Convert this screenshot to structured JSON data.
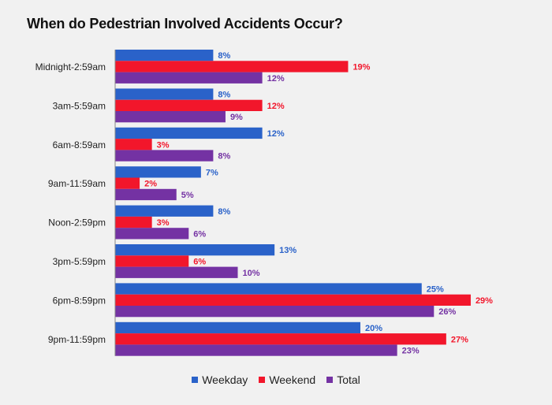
{
  "chart_data": {
    "type": "bar",
    "orientation": "horizontal",
    "title": "When do Pedestrian Involved Accidents Occur?",
    "categories": [
      "Midnight-2:59am",
      "3am-5:59am",
      "6am-8:59am",
      "9am-11:59am",
      "Noon-2:59pm",
      "3pm-5:59pm",
      "6pm-8:59pm",
      "9pm-11:59pm"
    ],
    "series": [
      {
        "name": "Weekday",
        "color": "#2a62c9",
        "values": [
          8,
          8,
          12,
          7,
          8,
          13,
          25,
          20
        ]
      },
      {
        "name": "Weekend",
        "color": "#f2162b",
        "values": [
          19,
          12,
          3,
          2,
          3,
          6,
          29,
          27
        ]
      },
      {
        "name": "Total",
        "color": "#7432a3",
        "values": [
          12,
          9,
          8,
          5,
          6,
          10,
          26,
          23
        ]
      }
    ],
    "value_suffix": "%",
    "xlim": [
      0,
      29
    ],
    "grid": false,
    "legend_position": "bottom"
  }
}
